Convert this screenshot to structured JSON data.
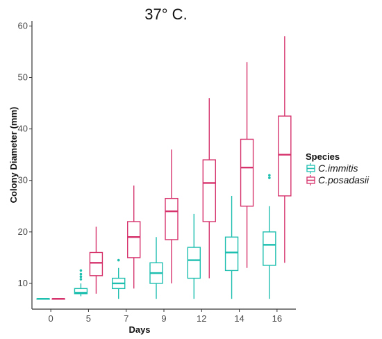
{
  "chart_data": {
    "type": "box",
    "title": "37° C.",
    "xlabel": "Days",
    "ylabel": "Colony Diameter (mm)",
    "categories": [
      "0",
      "5",
      "7",
      "9",
      "12",
      "14",
      "16"
    ],
    "yticks": [
      10,
      20,
      30,
      40,
      50,
      60
    ],
    "ylim": [
      5,
      61
    ],
    "grid": false,
    "legend": {
      "title": "Species",
      "placement": "right",
      "entries": [
        "C.immitis",
        "C.posadasii"
      ]
    },
    "series": [
      {
        "name": "C.immitis",
        "color": "#1fbfb0",
        "boxes": [
          {
            "min": 7,
            "q1": 7,
            "median": 7,
            "q3": 7,
            "max": 7,
            "outliers": []
          },
          {
            "min": 7.5,
            "q1": 8,
            "median": 8.2,
            "q3": 9,
            "max": 10,
            "outliers": [
              10.8,
              11.3,
              11.8,
              12.5
            ]
          },
          {
            "min": 7,
            "q1": 9,
            "median": 10,
            "q3": 11,
            "max": 13,
            "outliers": [
              14.5
            ]
          },
          {
            "min": 7,
            "q1": 10,
            "median": 12,
            "q3": 14,
            "max": 19,
            "outliers": []
          },
          {
            "min": 7,
            "q1": 11,
            "median": 14.5,
            "q3": 17,
            "max": 23.5,
            "outliers": []
          },
          {
            "min": 7,
            "q1": 12.5,
            "median": 16,
            "q3": 19,
            "max": 27,
            "outliers": []
          },
          {
            "min": 7,
            "q1": 13.5,
            "median": 17.5,
            "q3": 20,
            "max": 25,
            "outliers": [
              30.5,
              31
            ]
          }
        ]
      },
      {
        "name": "C.posadasii",
        "color": "#d6336c",
        "boxes": [
          {
            "min": 7,
            "q1": 7,
            "median": 7,
            "q3": 7,
            "max": 7,
            "outliers": []
          },
          {
            "min": 8,
            "q1": 11.5,
            "median": 14,
            "q3": 16,
            "max": 21,
            "outliers": []
          },
          {
            "min": 9,
            "q1": 15,
            "median": 19,
            "q3": 22,
            "max": 29,
            "outliers": []
          },
          {
            "min": 10,
            "q1": 18.5,
            "median": 24,
            "q3": 26.5,
            "max": 36,
            "outliers": []
          },
          {
            "min": 11,
            "q1": 22,
            "median": 29.5,
            "q3": 34,
            "max": 46,
            "outliers": []
          },
          {
            "min": 13,
            "q1": 25,
            "median": 32.5,
            "q3": 38,
            "max": 53,
            "outliers": []
          },
          {
            "min": 14,
            "q1": 27,
            "median": 35,
            "q3": 42.5,
            "max": 58,
            "outliers": []
          }
        ]
      }
    ]
  }
}
